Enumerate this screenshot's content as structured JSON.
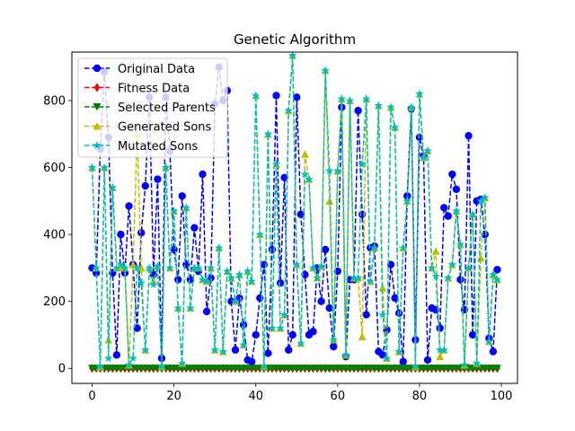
{
  "chart_data": {
    "type": "line",
    "title": "Genetic Algorithm",
    "xlabel": "",
    "ylabel": "",
    "xlim": [
      -4.95,
      103.95
    ],
    "ylim": [
      -45,
      945
    ],
    "xticks": [
      0,
      20,
      40,
      60,
      80,
      100
    ],
    "yticks": [
      0,
      200,
      400,
      600,
      800
    ],
    "grid": false,
    "legend_position": "top-left",
    "series": [
      {
        "name": "Original Data",
        "color": "#0000ff",
        "marker": "circle",
        "values": [
          300,
          285,
          655,
          885,
          690,
          285,
          40,
          400,
          285,
          485,
          310,
          120,
          405,
          545,
          810,
          280,
          565,
          30,
          810,
          650,
          355,
          265,
          515,
          310,
          265,
          420,
          290,
          580,
          170,
          270,
          790,
          900,
          800,
          830,
          200,
          55,
          210,
          130,
          25,
          20,
          100,
          210,
          310,
          45,
          355,
          815,
          255,
          570,
          55,
          100,
          810,
          460,
          280,
          100,
          110,
          300,
          200,
          355,
          180,
          65,
          290,
          780,
          35,
          265,
          265,
          770,
          460,
          160,
          360,
          365,
          50,
          40,
          115,
          310,
          210,
          165,
          20,
          515,
          775,
          85,
          690,
          635,
          25,
          180,
          175,
          120,
          480,
          455,
          580,
          535,
          265,
          175,
          695,
          100,
          500,
          505,
          400,
          90,
          50,
          295
        ],
        "notes": "dashed blue line with circle markers"
      },
      {
        "name": "Fitness Data",
        "color": "#ff0000",
        "marker": "diamond",
        "values": [
          0,
          0,
          0,
          0,
          0,
          0,
          0,
          0,
          0,
          0,
          0,
          0,
          0,
          0,
          0,
          0,
          0,
          0,
          0,
          0,
          0,
          0,
          0,
          0,
          0,
          0,
          0,
          0,
          0,
          0,
          0,
          0,
          0,
          0,
          0,
          0,
          0,
          0,
          0,
          0,
          0,
          0,
          0,
          0,
          0,
          0,
          0,
          0,
          0,
          0,
          0,
          0,
          0,
          0,
          0,
          0,
          0,
          0,
          0,
          0,
          0,
          0,
          0,
          0,
          0,
          0,
          0,
          0,
          0,
          0,
          0,
          0,
          0,
          0,
          0,
          0,
          0,
          0,
          0,
          0,
          0,
          0,
          0,
          0,
          0,
          0,
          0,
          0,
          0,
          0,
          0,
          0,
          0,
          0,
          0,
          0,
          0,
          0,
          0,
          0
        ]
      },
      {
        "name": "Selected Parents",
        "color": "#008000",
        "marker": "triangle-down",
        "values": [
          0,
          0,
          0,
          0,
          0,
          0,
          0,
          0,
          0,
          0,
          0,
          0,
          0,
          0,
          0,
          0,
          0,
          0,
          0,
          0,
          0,
          0,
          0,
          0,
          0,
          0,
          0,
          0,
          0,
          0,
          0,
          0,
          0,
          0,
          0,
          0,
          0,
          0,
          0,
          0,
          0,
          0,
          0,
          0,
          0,
          0,
          0,
          0,
          0,
          0,
          0,
          0,
          0,
          0,
          0,
          0,
          0,
          0,
          0,
          0,
          0,
          0,
          0,
          0,
          0,
          0,
          0,
          0,
          0,
          0,
          0,
          0,
          0,
          0,
          0,
          0,
          0,
          0,
          0,
          0,
          0,
          0,
          0,
          0,
          0,
          0,
          0,
          0,
          0,
          0,
          0,
          0,
          0,
          0,
          0,
          0,
          0,
          0,
          0,
          0
        ]
      },
      {
        "name": "Generated Sons",
        "color": "#bfbf00",
        "marker": "triangle-up",
        "values": [
          600,
          300,
          5,
          600,
          85,
          540,
          300,
          300,
          300,
          10,
          310,
          700,
          300,
          55,
          300,
          260,
          305,
          5,
          600,
          300,
          470,
          180,
          15,
          480,
          180,
          300,
          300,
          265,
          260,
          300,
          55,
          360,
          50,
          290,
          270,
          200,
          280,
          70,
          290,
          260,
          815,
          400,
          5,
          700,
          120,
          610,
          120,
          160,
          770,
          935,
          310,
          75,
          640,
          565,
          300,
          270,
          305,
          890,
          500,
          85,
          590,
          805,
          40,
          800,
          270,
          270,
          95,
          805,
          260,
          360,
          785,
          240,
          30,
          780,
          720,
          50,
          360,
          500,
          780,
          5,
          820,
          630,
          650,
          300,
          350,
          35,
          55,
          270,
          310,
          470,
          370,
          10,
          300,
          460,
          15,
          330,
          510,
          80,
          280,
          265
        ]
      },
      {
        "name": "Mutated Sons",
        "color": "#00bfbf",
        "marker": "star",
        "values": [
          600,
          300,
          5,
          600,
          30,
          540,
          300,
          310,
          300,
          10,
          30,
          300,
          255,
          55,
          300,
          250,
          305,
          5,
          600,
          300,
          470,
          180,
          15,
          480,
          180,
          300,
          300,
          265,
          260,
          300,
          55,
          360,
          50,
          290,
          270,
          200,
          280,
          70,
          290,
          260,
          815,
          400,
          5,
          700,
          120,
          610,
          120,
          160,
          770,
          935,
          310,
          75,
          580,
          565,
          300,
          270,
          305,
          890,
          590,
          85,
          590,
          805,
          40,
          800,
          270,
          270,
          610,
          805,
          260,
          360,
          785,
          160,
          30,
          780,
          720,
          50,
          360,
          500,
          780,
          5,
          820,
          630,
          650,
          300,
          275,
          55,
          55,
          270,
          310,
          470,
          370,
          10,
          300,
          460,
          15,
          500,
          510,
          80,
          280,
          265
        ]
      }
    ]
  }
}
